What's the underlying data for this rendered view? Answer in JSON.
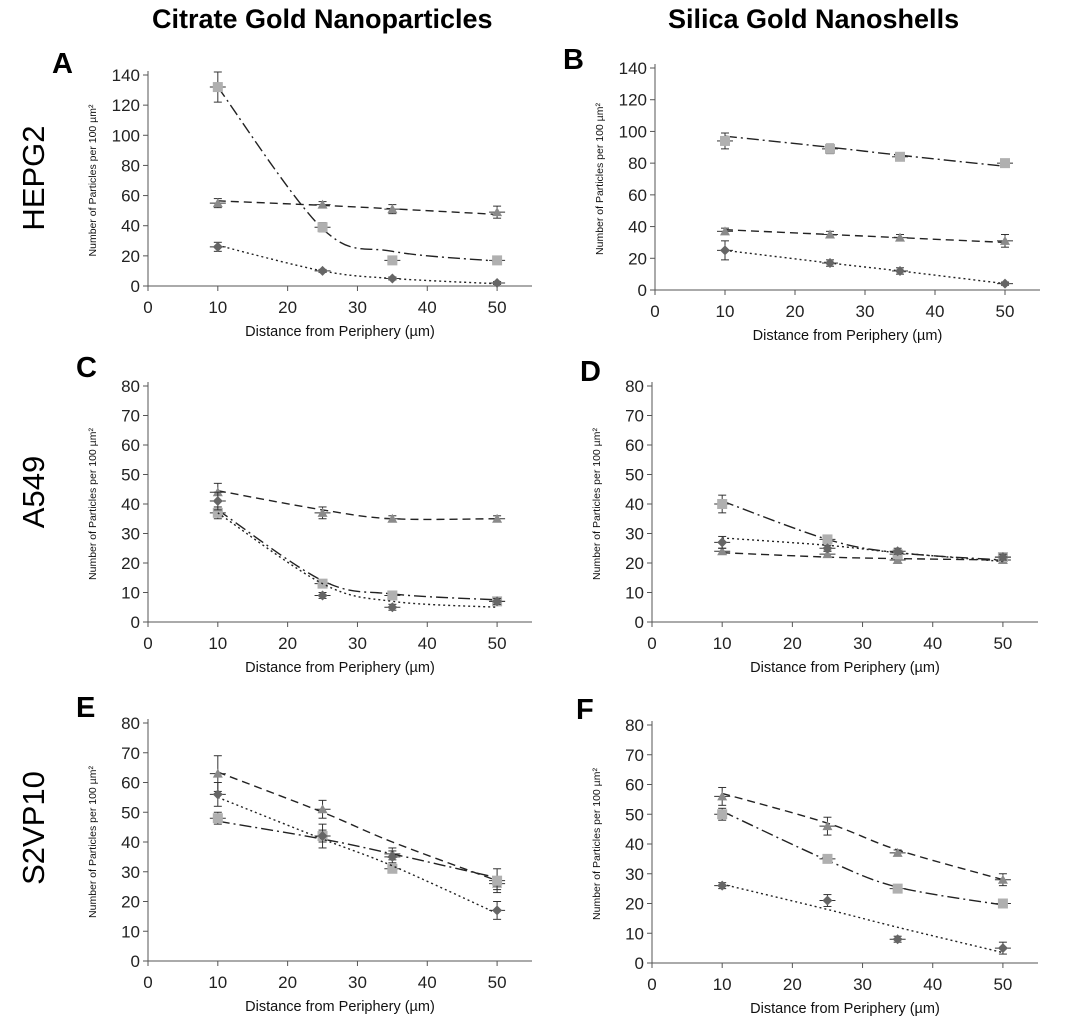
{
  "column_titles": [
    "Citrate Gold Nanoparticles",
    "Silica Gold Nanoshells"
  ],
  "row_labels": [
    "HEPG2",
    "A549",
    "S2VP10"
  ],
  "colors": {
    "triangle": "#8a8a8a",
    "square": "#b0b0b0",
    "diamond": "#666666",
    "axis": "#555555"
  },
  "chart_data": [
    {
      "panel": "A",
      "type": "scatter",
      "xlabel": "Distance from Periphery (µm)",
      "ylabel": "Number of Particles per 100 µm²",
      "xlim": [
        0,
        55
      ],
      "ylim": [
        0,
        140
      ],
      "xticks": [
        0,
        10,
        20,
        30,
        40,
        50
      ],
      "yticks": [
        0,
        20,
        40,
        60,
        80,
        100,
        120,
        140
      ],
      "series": [
        {
          "marker": "triangle",
          "trend": "dashed",
          "x": [
            10,
            25,
            35,
            50
          ],
          "y": [
            55,
            54,
            51,
            49
          ],
          "err": [
            3,
            2,
            3,
            4
          ],
          "fit": [
            56.5,
            53.5,
            51.2,
            47.5
          ]
        },
        {
          "marker": "square",
          "trend": "dashdot",
          "x": [
            10,
            25,
            35,
            50
          ],
          "y": [
            132,
            39,
            17,
            17
          ],
          "err": [
            10,
            3,
            2,
            2
          ],
          "fit": [
            132,
            38,
            23,
            16.5
          ]
        },
        {
          "marker": "diamond",
          "trend": "dotted",
          "x": [
            10,
            25,
            35,
            50
          ],
          "y": [
            26,
            10,
            5,
            2
          ],
          "err": [
            3,
            1,
            1,
            1
          ],
          "fit": [
            27,
            10,
            5,
            1.5
          ]
        }
      ]
    },
    {
      "panel": "B",
      "type": "scatter",
      "xlabel": "Distance from Periphery (µm)",
      "ylabel": "Number of Particles per 100 µm²",
      "xlim": [
        0,
        55
      ],
      "ylim": [
        0,
        140
      ],
      "xticks": [
        0,
        10,
        20,
        30,
        40,
        50
      ],
      "yticks": [
        0,
        20,
        40,
        60,
        80,
        100,
        120,
        140
      ],
      "series": [
        {
          "marker": "triangle",
          "trend": "dashed",
          "x": [
            10,
            25,
            35,
            50
          ],
          "y": [
            37,
            35,
            33,
            31
          ],
          "err": [
            2,
            2,
            2,
            4
          ],
          "fit": [
            38,
            35,
            33,
            30
          ]
        },
        {
          "marker": "square",
          "trend": "dashdot",
          "x": [
            10,
            25,
            35,
            50
          ],
          "y": [
            94,
            89,
            84,
            80
          ],
          "err": [
            5,
            3,
            2,
            2
          ],
          "fit": [
            97,
            90,
            85,
            78
          ]
        },
        {
          "marker": "diamond",
          "trend": "dotted",
          "x": [
            10,
            25,
            35,
            50
          ],
          "y": [
            25,
            17,
            12,
            4
          ],
          "err": [
            6,
            2,
            2,
            1
          ],
          "fit": [
            25,
            17,
            12,
            4
          ]
        }
      ]
    },
    {
      "panel": "C",
      "type": "scatter",
      "xlabel": "Distance from Periphery (µm)",
      "ylabel": "Number of Particles per 100 µm²",
      "xlim": [
        0,
        55
      ],
      "ylim": [
        0,
        80
      ],
      "xticks": [
        0,
        10,
        20,
        30,
        40,
        50
      ],
      "yticks": [
        0,
        10,
        20,
        30,
        40,
        50,
        60,
        70,
        80
      ],
      "series": [
        {
          "marker": "triangle",
          "trend": "dashed",
          "x": [
            10,
            25,
            35,
            50
          ],
          "y": [
            44,
            37,
            35,
            35
          ],
          "err": [
            3,
            2,
            1,
            1
          ],
          "fit": [
            44.5,
            38,
            35,
            35
          ]
        },
        {
          "marker": "square",
          "trend": "dashdot",
          "x": [
            10,
            25,
            35,
            50
          ],
          "y": [
            37,
            13,
            9,
            7
          ],
          "err": [
            2,
            1,
            1,
            1
          ],
          "fit": [
            38,
            14,
            9.5,
            7.5
          ]
        },
        {
          "marker": "diamond",
          "trend": "dotted",
          "x": [
            10,
            25,
            35,
            50
          ],
          "y": [
            41,
            9,
            5,
            7
          ],
          "err": [
            3,
            1,
            1,
            1
          ],
          "fit": [
            37,
            13,
            7,
            5
          ]
        }
      ]
    },
    {
      "panel": "D",
      "type": "scatter",
      "xlabel": "Distance from Periphery (µm)",
      "ylabel": "Number of Particles per 100 µm²",
      "xlim": [
        0,
        55
      ],
      "ylim": [
        0,
        80
      ],
      "xticks": [
        0,
        10,
        20,
        30,
        40,
        50
      ],
      "yticks": [
        0,
        10,
        20,
        30,
        40,
        50,
        60,
        70,
        80
      ],
      "series": [
        {
          "marker": "triangle",
          "trend": "dashed",
          "x": [
            10,
            25,
            35,
            50
          ],
          "y": [
            24,
            23,
            21,
            21
          ],
          "err": [
            1,
            1,
            1,
            1
          ],
          "fit": [
            23.5,
            22,
            21.5,
            21
          ]
        },
        {
          "marker": "square",
          "trend": "dashdot",
          "x": [
            10,
            25,
            35,
            50
          ],
          "y": [
            40,
            28,
            23,
            22
          ],
          "err": [
            3,
            1,
            1,
            1
          ],
          "fit": [
            41,
            28,
            23.5,
            21
          ]
        },
        {
          "marker": "diamond",
          "trend": "dotted",
          "x": [
            10,
            25,
            35,
            50
          ],
          "y": [
            27,
            25,
            24,
            22
          ],
          "err": [
            2,
            1,
            1,
            1
          ],
          "fit": [
            28.5,
            26,
            23.5,
            20.5
          ]
        }
      ]
    },
    {
      "panel": "E",
      "type": "scatter",
      "xlabel": "Distance from Periphery (µm)",
      "ylabel": "Number of Particles per 100 µm²",
      "xlim": [
        0,
        55
      ],
      "ylim": [
        0,
        80
      ],
      "xticks": [
        0,
        10,
        20,
        30,
        40,
        50
      ],
      "yticks": [
        0,
        10,
        20,
        30,
        40,
        50,
        60,
        70,
        80
      ],
      "series": [
        {
          "marker": "triangle",
          "trend": "dashed",
          "x": [
            10,
            25,
            35,
            50
          ],
          "y": [
            63,
            51,
            36,
            26
          ],
          "err": [
            6,
            3,
            2,
            2
          ],
          "fit": [
            63.5,
            50,
            40,
            27
          ]
        },
        {
          "marker": "square",
          "trend": "dashdot",
          "x": [
            10,
            25,
            35,
            50
          ],
          "y": [
            48,
            42,
            31,
            27
          ],
          "err": [
            2,
            4,
            1,
            4
          ],
          "fit": [
            47,
            41,
            36,
            28
          ]
        },
        {
          "marker": "diamond",
          "trend": "dotted",
          "x": [
            10,
            25,
            35,
            50
          ],
          "y": [
            56,
            42,
            35,
            17
          ],
          "err": [
            4,
            2,
            2,
            3
          ],
          "fit": [
            55,
            41,
            32,
            16
          ]
        }
      ]
    },
    {
      "panel": "F",
      "type": "scatter",
      "xlabel": "Distance from Periphery (µm)",
      "ylabel": "Number of Particles per 100 µm²",
      "xlim": [
        0,
        55
      ],
      "ylim": [
        0,
        80
      ],
      "xticks": [
        0,
        10,
        20,
        30,
        40,
        50
      ],
      "yticks": [
        0,
        10,
        20,
        30,
        40,
        50,
        60,
        70,
        80
      ],
      "series": [
        {
          "marker": "triangle",
          "trend": "dashed",
          "x": [
            10,
            25,
            35,
            50
          ],
          "y": [
            56,
            46,
            37,
            28
          ],
          "err": [
            3,
            3,
            1,
            2
          ],
          "fit": [
            57,
            47,
            38,
            28
          ]
        },
        {
          "marker": "square",
          "trend": "dashdot",
          "x": [
            10,
            25,
            35,
            50
          ],
          "y": [
            50,
            35,
            25,
            20
          ],
          "err": [
            2,
            1,
            1,
            1
          ],
          "fit": [
            51,
            34.5,
            25.5,
            19.5
          ]
        },
        {
          "marker": "diamond",
          "trend": "dotted",
          "x": [
            10,
            25,
            35,
            50
          ],
          "y": [
            26,
            21,
            8,
            5
          ],
          "err": [
            1,
            2,
            1,
            2
          ],
          "fit": [
            26.5,
            18,
            12,
            3.5
          ]
        }
      ]
    }
  ]
}
